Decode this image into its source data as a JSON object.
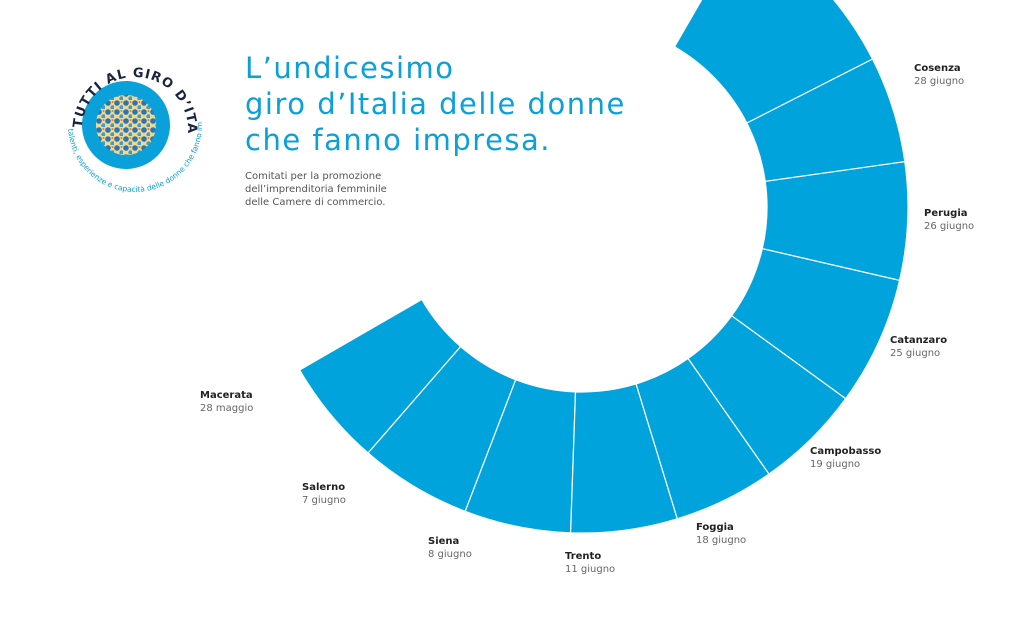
{
  "header": {
    "title_lines": [
      "L’undicesimo",
      "giro d’Italia delle donne",
      "che fanno impresa."
    ],
    "subtitle_lines": [
      "Comitati per la promozione",
      "dell’imprenditoria femminile",
      "delle Camere di commercio."
    ]
  },
  "logo": {
    "top_text": "TUTTI AL GIRO D’ITALIA",
    "bottom_text": "talenti, esperienze e capacità delle donne che fanno impresa"
  },
  "colors": {
    "accent": "#0aa0d9",
    "segment": "#00a3dc",
    "dark_text": "#222222",
    "grey_text": "#666666"
  },
  "stages": [
    {
      "city": "Macerata",
      "date": "28 maggio"
    },
    {
      "city": "Salerno",
      "date": "7 giugno"
    },
    {
      "city": "Siena",
      "date": "8 giugno"
    },
    {
      "city": "Trento",
      "date": "11 giugno"
    },
    {
      "city": "Foggia",
      "date": "18 giugno"
    },
    {
      "city": "Campobasso",
      "date": "19 giugno"
    },
    {
      "city": "Catanzaro",
      "date": "25 giugno"
    },
    {
      "city": "Perugia",
      "date": "26 giugno"
    },
    {
      "city": "Cosenza",
      "date": "28 giugno"
    }
  ]
}
